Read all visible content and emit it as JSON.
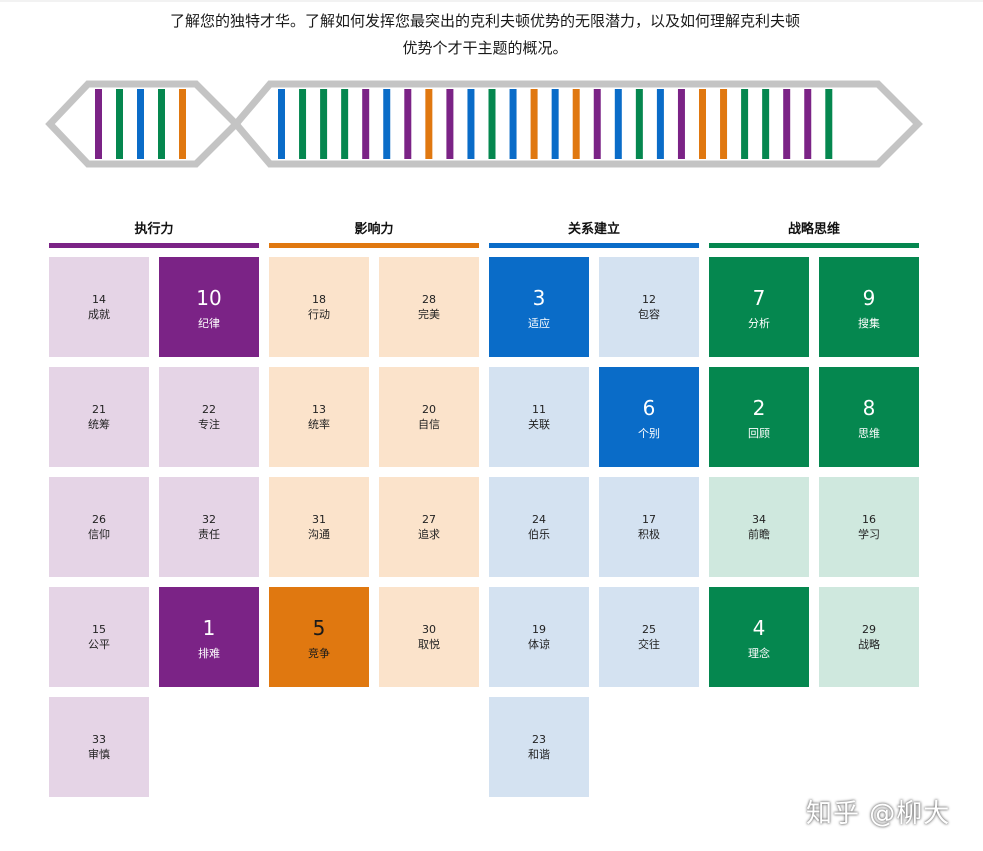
{
  "intro": {
    "line1": "了解您的独特才华。了解如何发挥您最突出的克利夫顿优势的无限潜力，以及如何理解克利夫顿",
    "line2": "优势个才干主题的概况。"
  },
  "colors": {
    "execution": "#7b2386",
    "influencing": "#e07810",
    "relationship": "#0a6cc8",
    "strategic": "#05874f",
    "execution_light": "#e5d4e6",
    "influencing_light": "#fbe3cb",
    "relationship_light": "#d4e2f1",
    "strategic_light": "#cfe8de",
    "frame": "#c4c4c4"
  },
  "dna_stripes": {
    "left": [
      "execution",
      "strategic",
      "relationship",
      "strategic",
      "influencing"
    ],
    "right": [
      "relationship",
      "strategic",
      "strategic",
      "strategic",
      "execution",
      "relationship",
      "execution",
      "influencing",
      "execution",
      "relationship",
      "strategic",
      "relationship",
      "influencing",
      "relationship",
      "influencing",
      "execution",
      "relationship",
      "strategic",
      "relationship",
      "execution",
      "influencing",
      "influencing",
      "strategic",
      "strategic",
      "execution",
      "execution",
      "strategic"
    ]
  },
  "domains": [
    {
      "key": "execution",
      "label": "执行力",
      "themes": [
        {
          "rank": "14",
          "name": "成就",
          "top": false
        },
        {
          "rank": "10",
          "name": "纪律",
          "top": true
        },
        {
          "rank": "21",
          "name": "统筹",
          "top": false
        },
        {
          "rank": "22",
          "name": "专注",
          "top": false
        },
        {
          "rank": "26",
          "name": "信仰",
          "top": false
        },
        {
          "rank": "32",
          "name": "责任",
          "top": false
        },
        {
          "rank": "15",
          "name": "公平",
          "top": false
        },
        {
          "rank": "1",
          "name": "排难",
          "top": true
        },
        {
          "rank": "33",
          "name": "审慎",
          "top": false
        }
      ]
    },
    {
      "key": "influencing",
      "label": "影响力",
      "themes": [
        {
          "rank": "18",
          "name": "行动",
          "top": false
        },
        {
          "rank": "28",
          "name": "完美",
          "top": false
        },
        {
          "rank": "13",
          "name": "统率",
          "top": false
        },
        {
          "rank": "20",
          "name": "自信",
          "top": false
        },
        {
          "rank": "31",
          "name": "沟通",
          "top": false
        },
        {
          "rank": "27",
          "name": "追求",
          "top": false
        },
        {
          "rank": "5",
          "name": "竞争",
          "top": true
        },
        {
          "rank": "30",
          "name": "取悦",
          "top": false
        }
      ]
    },
    {
      "key": "relationship",
      "label": "关系建立",
      "themes": [
        {
          "rank": "3",
          "name": "适应",
          "top": true
        },
        {
          "rank": "12",
          "name": "包容",
          "top": false
        },
        {
          "rank": "11",
          "name": "关联",
          "top": false
        },
        {
          "rank": "6",
          "name": "个别",
          "top": true
        },
        {
          "rank": "24",
          "name": "伯乐",
          "top": false
        },
        {
          "rank": "17",
          "name": "积极",
          "top": false
        },
        {
          "rank": "19",
          "name": "体谅",
          "top": false
        },
        {
          "rank": "25",
          "name": "交往",
          "top": false
        },
        {
          "rank": "23",
          "name": "和谐",
          "top": false
        }
      ]
    },
    {
      "key": "strategic",
      "label": "战略思维",
      "themes": [
        {
          "rank": "7",
          "name": "分析",
          "top": true
        },
        {
          "rank": "9",
          "name": "搜集",
          "top": true
        },
        {
          "rank": "2",
          "name": "回顾",
          "top": true
        },
        {
          "rank": "8",
          "name": "思维",
          "top": true
        },
        {
          "rank": "34",
          "name": "前瞻",
          "top": false
        },
        {
          "rank": "16",
          "name": "学习",
          "top": false
        },
        {
          "rank": "4",
          "name": "理念",
          "top": true
        },
        {
          "rank": "29",
          "name": "战略",
          "top": false
        }
      ]
    }
  ],
  "watermark": "知乎 @柳大"
}
